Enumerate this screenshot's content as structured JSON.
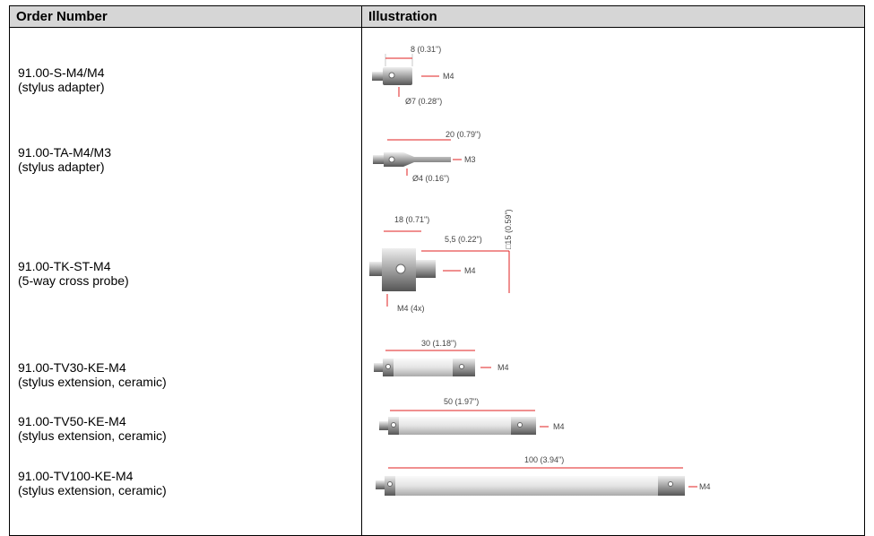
{
  "table": {
    "columns": [
      "Order Number",
      "Illustration"
    ],
    "rows": [
      {
        "order_number": "91.00-S-M4/M4",
        "description": "(stylus adapter)",
        "labels": [
          "8 (0.31\")",
          "M4",
          "Ø7 (0.28\")"
        ]
      },
      {
        "order_number": "91.00-TA-M4/M3",
        "description": "(stylus adapter)",
        "labels": [
          "20 (0.79\")",
          "M3",
          "Ø4 (0.16\")"
        ]
      },
      {
        "order_number": "91.00-TK-ST-M4",
        "description": "(5-way cross probe)",
        "labels": [
          "18 (0.71\")",
          "5,5 (0.22\")",
          "□15 (0.59\")",
          "M4",
          "M4 (4x)"
        ]
      },
      {
        "order_number": "91.00-TV30-KE-M4",
        "description": "(stylus extension, ceramic)",
        "labels": [
          "30 (1.18\")",
          "M4"
        ]
      },
      {
        "order_number": "91.00-TV50-KE-M4",
        "description": "(stylus extension, ceramic)",
        "labels": [
          "50 (1.97\")",
          "M4"
        ]
      },
      {
        "order_number": "91.00-TV100-KE-M4",
        "description": "(stylus extension, ceramic)",
        "labels": [
          "100 (3.94\")",
          "M4"
        ]
      }
    ]
  }
}
